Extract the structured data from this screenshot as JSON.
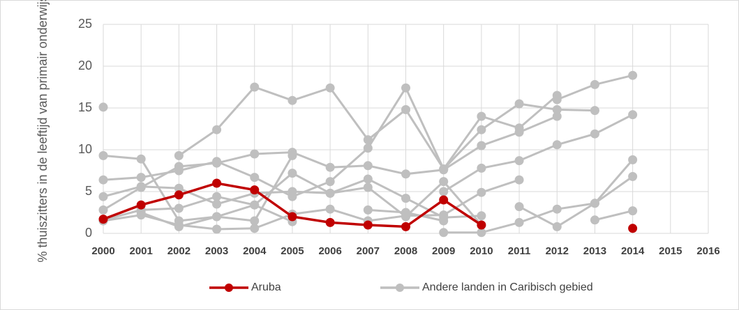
{
  "chart_data": {
    "type": "line",
    "ylabel": "% thuiszitters in de leeftijd van primair onderwijs",
    "categories": [
      "2000",
      "2001",
      "2002",
      "2003",
      "2004",
      "2005",
      "2006",
      "2007",
      "2008",
      "2009",
      "2010",
      "2011",
      "2012",
      "2013",
      "2014",
      "2015",
      "2016"
    ],
    "ylim": [
      0,
      25
    ],
    "yticks": [
      0,
      5,
      10,
      15,
      20,
      25
    ],
    "grid": true,
    "series": [
      {
        "name": "Aruba",
        "color": "#c00000",
        "values": [
          1.7,
          3.4,
          4.6,
          6.0,
          5.2,
          2.0,
          1.3,
          1.0,
          0.8,
          4.0,
          1.0,
          null,
          null,
          null,
          0.6,
          null,
          null
        ]
      },
      {
        "name": "Andere landen in Caribisch gebied",
        "color": "#bfbfbf",
        "values": [
          [
            15.1,
            null,
            null,
            null,
            null,
            null,
            null,
            null,
            null,
            null,
            null,
            null,
            null,
            null,
            null,
            null,
            null
          ],
          [
            9.3,
            8.9,
            1.5,
            2.0,
            1.5,
            9.3,
            null,
            null,
            null,
            null,
            null,
            null,
            null,
            null,
            null,
            null,
            null
          ],
          [
            null,
            null,
            9.3,
            12.4,
            17.5,
            15.9,
            17.4,
            11.2,
            14.8,
            7.7,
            14.0,
            12.6,
            16.5,
            null,
            null,
            null,
            null
          ],
          [
            6.4,
            6.7,
            7.5,
            8.6,
            6.7,
            4.4,
            6.2,
            10.2,
            17.4,
            7.7,
            12.4,
            15.5,
            14.8,
            14.7,
            null,
            null,
            null
          ],
          [
            2.8,
            5.5,
            8.0,
            8.4,
            9.5,
            9.7,
            7.9,
            8.1,
            7.1,
            7.6,
            10.5,
            12.1,
            14.0,
            null,
            null,
            null,
            null
          ],
          [
            null,
            null,
            null,
            null,
            null,
            null,
            null,
            null,
            null,
            5.0,
            7.8,
            8.7,
            10.6,
            11.9,
            14.2,
            null,
            null
          ],
          [
            null,
            null,
            null,
            null,
            null,
            null,
            null,
            null,
            null,
            0.1,
            0.1,
            1.3,
            2.9,
            3.6,
            8.8,
            null,
            null
          ],
          [
            null,
            null,
            null,
            null,
            null,
            null,
            null,
            null,
            null,
            null,
            null,
            3.2,
            0.8,
            3.6,
            6.8,
            null,
            null
          ],
          [
            null,
            null,
            null,
            null,
            null,
            null,
            null,
            null,
            null,
            null,
            null,
            null,
            16.0,
            17.8,
            18.9,
            null,
            null
          ],
          [
            null,
            null,
            null,
            null,
            null,
            null,
            null,
            null,
            null,
            null,
            null,
            null,
            null,
            1.6,
            2.7,
            null,
            null
          ],
          [
            1.5,
            2.2,
            1.0,
            0.5,
            0.6,
            2.3,
            2.9,
            1.5,
            2.1,
            2.2,
            4.9,
            6.4,
            null,
            null,
            null,
            null,
            null
          ],
          [
            1.6,
            2.8,
            3.0,
            4.4,
            3.4,
            7.2,
            4.8,
            6.5,
            4.2,
            1.9,
            2.1,
            null,
            null,
            null,
            null,
            null,
            null
          ],
          [
            4.4,
            5.6,
            5.4,
            3.5,
            4.8,
            5.0,
            4.8,
            5.5,
            2.0,
            6.2,
            1.0,
            null,
            null,
            null,
            null,
            null,
            null
          ],
          [
            null,
            2.5,
            0.8,
            2.0,
            3.4,
            1.4,
            null,
            2.8,
            2.5,
            1.5,
            null,
            null,
            null,
            null,
            null,
            null,
            null
          ]
        ]
      }
    ]
  }
}
